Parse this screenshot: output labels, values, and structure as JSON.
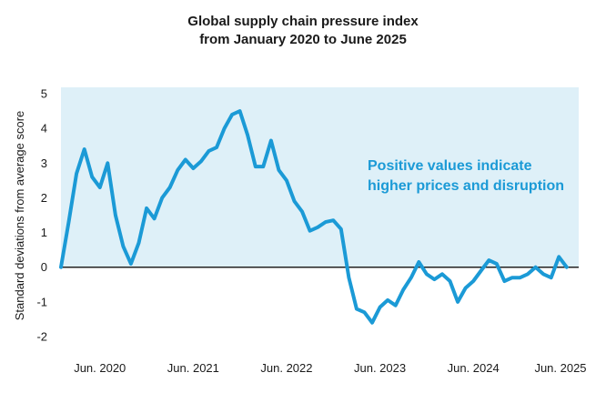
{
  "chart_data": {
    "type": "line",
    "title": "Global supply chain pressure index",
    "subtitle": "from January 2020 to June 2025",
    "xlabel": "",
    "ylabel": "Standard deviations from average score",
    "ylim": [
      -2,
      5
    ],
    "yticks": [
      "5",
      "4",
      "3",
      "2",
      "1",
      "0",
      "-1",
      "-2"
    ],
    "ytick_values": [
      5,
      4,
      3,
      2,
      1,
      0,
      -1,
      -2
    ],
    "xticks": [
      "Jun. 2020",
      "Jun. 2021",
      "Jun. 2022",
      "Jun. 2023",
      "Jun. 2024",
      "Jun. 2025"
    ],
    "xtick_index": [
      5,
      17,
      29,
      41,
      53,
      65
    ],
    "annotation_line1": "Positive values indicate",
    "annotation_line2": "higher prices and disruption",
    "series": [
      {
        "name": "Global supply chain pressure index",
        "color": "#1b9ad6",
        "values": [
          0.0,
          1.3,
          2.7,
          3.4,
          2.6,
          2.3,
          3.0,
          1.5,
          0.6,
          0.1,
          0.7,
          1.7,
          1.4,
          2.0,
          2.3,
          2.8,
          3.1,
          2.85,
          3.05,
          3.35,
          3.45,
          4.0,
          4.4,
          4.5,
          3.8,
          2.9,
          2.9,
          3.65,
          2.8,
          2.5,
          1.9,
          1.6,
          1.05,
          1.15,
          1.3,
          1.35,
          1.1,
          -0.3,
          -1.2,
          -1.3,
          -1.6,
          -1.15,
          -0.95,
          -1.1,
          -0.65,
          -0.3,
          0.15,
          -0.2,
          -0.35,
          -0.2,
          -0.4,
          -1.0,
          -0.6,
          -0.4,
          -0.1,
          0.2,
          0.1,
          -0.4,
          -0.3,
          -0.3,
          -0.2,
          0.0,
          -0.2,
          -0.3,
          0.3,
          0.0
        ]
      }
    ],
    "shaded_region": "positive values (above 0)",
    "shade_color": "#def0f8",
    "zero_line_color": "#222222"
  }
}
